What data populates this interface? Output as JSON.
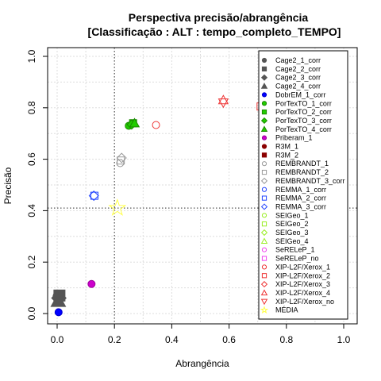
{
  "chart_data": {
    "type": "scatter",
    "title": "Perspectiva precisão/abrangência",
    "subtitle": "[Classificação : ALT : tempo_completo_TEMPO]",
    "xlabel": "Abrangência",
    "ylabel": "Precisão",
    "xlim": [
      0,
      1
    ],
    "ylim": [
      0,
      1
    ],
    "xticks": [
      "0.0",
      "0.2",
      "0.4",
      "0.6",
      "0.8",
      "1.0"
    ],
    "yticks": [
      "0.0",
      "0.2",
      "0.4",
      "0.6",
      "0.8",
      "1.0"
    ],
    "grid": true,
    "legend_position": "right",
    "reference_lines": {
      "vertical_x": 0.2,
      "horizontal_y": 0.41
    },
    "series": [
      {
        "name": "Cage2_1_corr",
        "color": "#555555",
        "fill": "#555555",
        "shape": "circle",
        "points": [
          [
            0.005,
            0.065
          ]
        ]
      },
      {
        "name": "Cage2_2_corr",
        "color": "#555555",
        "fill": "#555555",
        "shape": "square",
        "points": [
          [
            0.008,
            0.07
          ]
        ]
      },
      {
        "name": "Cage2_3_corr",
        "color": "#555555",
        "fill": "#555555",
        "shape": "diamond",
        "points": [
          [
            0.006,
            0.06
          ]
        ]
      },
      {
        "name": "Cage2_4_corr",
        "color": "#555555",
        "fill": "#555555",
        "shape": "triangle",
        "points": [
          [
            0.004,
            0.05
          ]
        ]
      },
      {
        "name": "DobrEM_1_corr",
        "color": "#0000cc",
        "fill": "#0000ff",
        "shape": "circle",
        "points": [
          [
            0.005,
            0.005
          ]
        ]
      },
      {
        "name": "PorTexTO_1_corr",
        "color": "#1a8a00",
        "fill": "#22cc00",
        "shape": "circle",
        "points": [
          [
            0.25,
            0.73
          ]
        ]
      },
      {
        "name": "PorTexTO_2_corr",
        "color": "#1a8a00",
        "fill": "#22cc00",
        "shape": "square",
        "points": [
          [
            0.265,
            0.74
          ]
        ]
      },
      {
        "name": "PorTexTO_3_corr",
        "color": "#1a8a00",
        "fill": "#22cc00",
        "shape": "diamond",
        "points": [
          [
            0.26,
            0.735
          ]
        ]
      },
      {
        "name": "PorTexTO_4_corr",
        "color": "#1a8a00",
        "fill": "#22cc00",
        "shape": "triangle",
        "points": [
          [
            0.27,
            0.74
          ]
        ]
      },
      {
        "name": "Priberam_1",
        "color": "#990099",
        "fill": "#cc00cc",
        "shape": "circle",
        "points": [
          [
            0.12,
            0.115
          ]
        ]
      },
      {
        "name": "R3M_1",
        "color": "#8b0000",
        "fill": "#8b0000",
        "shape": "circle",
        "points": []
      },
      {
        "name": "R3M_2",
        "color": "#8b0000",
        "fill": "#8b0000",
        "shape": "square",
        "points": []
      },
      {
        "name": "REMBRANDT_1",
        "color": "#999999",
        "fill": "none",
        "shape": "circle",
        "points": [
          [
            0.22,
            0.585
          ]
        ]
      },
      {
        "name": "REMBRANDT_2",
        "color": "#999999",
        "fill": "none",
        "shape": "square",
        "points": [
          [
            0.222,
            0.595
          ]
        ]
      },
      {
        "name": "REMBRANDT_3_corr",
        "color": "#999999",
        "fill": "none",
        "shape": "diamond",
        "points": [
          [
            0.225,
            0.605
          ]
        ]
      },
      {
        "name": "REMMA_1_corr",
        "color": "#2244ff",
        "fill": "none",
        "shape": "circle",
        "points": []
      },
      {
        "name": "REMMA_2_corr",
        "color": "#2244ff",
        "fill": "none",
        "shape": "square",
        "points": [
          [
            0.13,
            0.458
          ]
        ]
      },
      {
        "name": "REMMA_3_corr",
        "color": "#2244ff",
        "fill": "none",
        "shape": "diamond",
        "points": [
          [
            0.128,
            0.458
          ]
        ]
      },
      {
        "name": "SEIGeo_1",
        "color": "#99ee22",
        "fill": "none",
        "shape": "circle",
        "points": []
      },
      {
        "name": "SEIGeo_2",
        "color": "#99ee22",
        "fill": "none",
        "shape": "square",
        "points": []
      },
      {
        "name": "SEIGeo_3",
        "color": "#99ee22",
        "fill": "none",
        "shape": "diamond",
        "points": []
      },
      {
        "name": "SEIGeo_4",
        "color": "#99ee22",
        "fill": "none",
        "shape": "triangle",
        "points": []
      },
      {
        "name": "SeRELeP_1",
        "color": "#ee44ee",
        "fill": "none",
        "shape": "circle",
        "points": []
      },
      {
        "name": "SeRELeP_no",
        "color": "#ee44ee",
        "fill": "none",
        "shape": "square",
        "points": []
      },
      {
        "name": "XIP-L2F/Xerox_1",
        "color": "#ee3333",
        "fill": "none",
        "shape": "circle",
        "points": [
          [
            0.345,
            0.733
          ]
        ]
      },
      {
        "name": "XIP-L2F/Xerox_2",
        "color": "#ee3333",
        "fill": "none",
        "shape": "square",
        "points": [
          [
            0.71,
            0.805
          ]
        ]
      },
      {
        "name": "XIP-L2F/Xerox_3",
        "color": "#ee3333",
        "fill": "none",
        "shape": "diamond",
        "points": []
      },
      {
        "name": "XIP-L2F/Xerox_4",
        "color": "#ee3333",
        "fill": "none",
        "shape": "triangle",
        "points": [
          [
            0.58,
            0.83
          ]
        ]
      },
      {
        "name": "XIP-L2F/Xerox_no",
        "color": "#ee3333",
        "fill": "none",
        "shape": "triangle-down",
        "points": [
          [
            0.58,
            0.82
          ]
        ]
      },
      {
        "name": "MÉDIA",
        "color": "#ffff44",
        "fill": "none",
        "shape": "star",
        "points": [
          [
            0.21,
            0.41
          ]
        ]
      }
    ]
  }
}
